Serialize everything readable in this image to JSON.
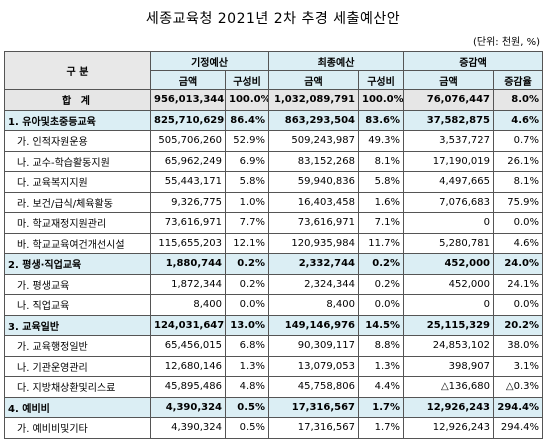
{
  "header": {
    "title": "세종교육청 2021년 2차 추경 세출예산안",
    "unit": "(단위: 천원, %)"
  },
  "table": {
    "columns": {
      "category": "구 분",
      "groups": [
        {
          "label": "기정예산",
          "sub": [
            "금액",
            "구성비"
          ]
        },
        {
          "label": "최종예산",
          "sub": [
            "금액",
            "구성비"
          ]
        },
        {
          "label": "증감액",
          "sub": [
            "금액",
            "증감율"
          ]
        }
      ]
    },
    "total": {
      "label": "합 계",
      "cells": [
        "956,013,344",
        "100.0%",
        "1,032,089,791",
        "100.0%",
        "76,076,447",
        "8.0%"
      ]
    },
    "sections": [
      {
        "label": "1. 유아및초중등교육",
        "cells": [
          "825,710,629",
          "86.4%",
          "863,293,504",
          "83.6%",
          "37,582,875",
          "4.6%"
        ],
        "items": [
          {
            "label": "가. 인적자원운용",
            "cells": [
              "505,706,260",
              "52.9%",
              "509,243,987",
              "49.3%",
              "3,537,727",
              "0.7%"
            ]
          },
          {
            "label": "나. 교수-학습활동지원",
            "cells": [
              "65,962,249",
              "6.9%",
              "83,152,268",
              "8.1%",
              "17,190,019",
              "26.1%"
            ]
          },
          {
            "label": "다. 교육복지지원",
            "cells": [
              "55,443,171",
              "5.8%",
              "59,940,836",
              "5.8%",
              "4,497,665",
              "8.1%"
            ]
          },
          {
            "label": "라. 보건/급식/체육활동",
            "cells": [
              "9,326,775",
              "1.0%",
              "16,403,458",
              "1.6%",
              "7,076,683",
              "75.9%"
            ]
          },
          {
            "label": "마. 학교재정지원관리",
            "cells": [
              "73,616,971",
              "7.7%",
              "73,616,971",
              "7.1%",
              "0",
              "0.0%"
            ]
          },
          {
            "label": "바. 학교교육여건개선시설",
            "cells": [
              "115,655,203",
              "12.1%",
              "120,935,984",
              "11.7%",
              "5,280,781",
              "4.6%"
            ]
          }
        ]
      },
      {
        "label": "2. 평생·직업교육",
        "cells": [
          "1,880,744",
          "0.2%",
          "2,332,744",
          "0.2%",
          "452,000",
          "24.0%"
        ],
        "items": [
          {
            "label": "가. 평생교육",
            "cells": [
              "1,872,344",
              "0.2%",
              "2,324,344",
              "0.2%",
              "452,000",
              "24.1%"
            ]
          },
          {
            "label": "나. 직업교육",
            "cells": [
              "8,400",
              "0.0%",
              "8,400",
              "0.0%",
              "0",
              "0.0%"
            ]
          }
        ]
      },
      {
        "label": "3. 교육일반",
        "cells": [
          "124,031,647",
          "13.0%",
          "149,146,976",
          "14.5%",
          "25,115,329",
          "20.2%"
        ],
        "items": [
          {
            "label": "가. 교육행정일반",
            "cells": [
              "65,456,015",
              "6.8%",
              "90,309,117",
              "8.8%",
              "24,853,102",
              "38.0%"
            ]
          },
          {
            "label": "나. 기관운영관리",
            "cells": [
              "12,680,146",
              "1.3%",
              "13,079,053",
              "1.3%",
              "398,907",
              "3.1%"
            ]
          },
          {
            "label": "다. 지방채상환및리스료",
            "cells": [
              "45,895,486",
              "4.8%",
              "45,758,806",
              "4.4%",
              "△136,680",
              "△0.3%"
            ]
          }
        ]
      },
      {
        "label": "4. 예비비",
        "cells": [
          "4,390,324",
          "0.5%",
          "17,316,567",
          "1.7%",
          "12,926,243",
          "294.4%"
        ],
        "items": [
          {
            "label": "가. 예비비및기타",
            "cells": [
              "4,390,324",
              "0.5%",
              "17,316,567",
              "1.7%",
              "12,926,243",
              "294.4%"
            ]
          }
        ]
      }
    ]
  }
}
